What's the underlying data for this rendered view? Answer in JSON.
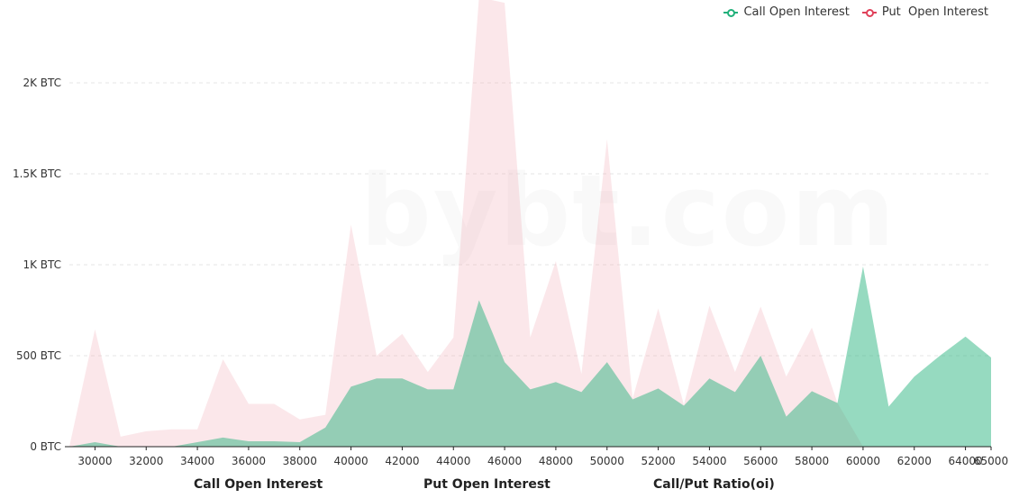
{
  "watermark": "bybt.com",
  "legend": [
    {
      "label": "Call Open Interest",
      "color": "#20b07a"
    },
    {
      "label": "Put  Open Interest",
      "color": "#e0415a"
    }
  ],
  "tabs": [
    {
      "label": "Call Open Interest"
    },
    {
      "label": "Put Open Interest"
    },
    {
      "label": "Call/Put Ratio(oi)"
    }
  ],
  "chart_data": {
    "type": "area",
    "x": [
      29000,
      30000,
      31000,
      32000,
      33000,
      34000,
      35000,
      36000,
      37000,
      38000,
      39000,
      40000,
      41000,
      42000,
      43000,
      44000,
      45000,
      46000,
      47000,
      48000,
      49000,
      50000,
      51000,
      52000,
      53000,
      54000,
      55000,
      56000,
      57000,
      58000,
      59000,
      60000,
      61000,
      62000,
      63000,
      64000,
      65000
    ],
    "x_tick_labels": [
      "30000",
      "32000",
      "34000",
      "36000",
      "38000",
      "40000",
      "42000",
      "44000",
      "46000",
      "48000",
      "50000",
      "52000",
      "54000",
      "56000",
      "58000",
      "60000",
      "62000",
      "64000",
      "65000"
    ],
    "y_ticks": [
      {
        "value": 0,
        "label": "0 BTC"
      },
      {
        "value": 500,
        "label": "500 BTC"
      },
      {
        "value": 1000,
        "label": "1K BTC"
      },
      {
        "value": 1500,
        "label": "1.5K BTC"
      },
      {
        "value": 2000,
        "label": "2K BTC"
      }
    ],
    "ylim": [
      0,
      2450
    ],
    "grid": true,
    "legend_position": "top-right",
    "series": [
      {
        "name": "Call Open Interest",
        "color": "#20b07a",
        "values": [
          0,
          25,
          0,
          0,
          0,
          25,
          50,
          30,
          30,
          25,
          105,
          330,
          375,
          375,
          315,
          315,
          805,
          465,
          315,
          355,
          300,
          465,
          260,
          320,
          225,
          375,
          300,
          500,
          165,
          305,
          240,
          990,
          220,
          385,
          500,
          605,
          490
        ]
      },
      {
        "name": "Put  Open Interest",
        "color": "#e0415a",
        "values": [
          0,
          645,
          55,
          85,
          95,
          95,
          480,
          235,
          235,
          150,
          175,
          1220,
          500,
          620,
          410,
          600,
          2470,
          2440,
          600,
          1020,
          400,
          1690,
          265,
          760,
          230,
          775,
          410,
          770,
          385,
          655,
          240,
          0,
          0,
          0,
          0,
          0,
          0
        ]
      }
    ]
  }
}
